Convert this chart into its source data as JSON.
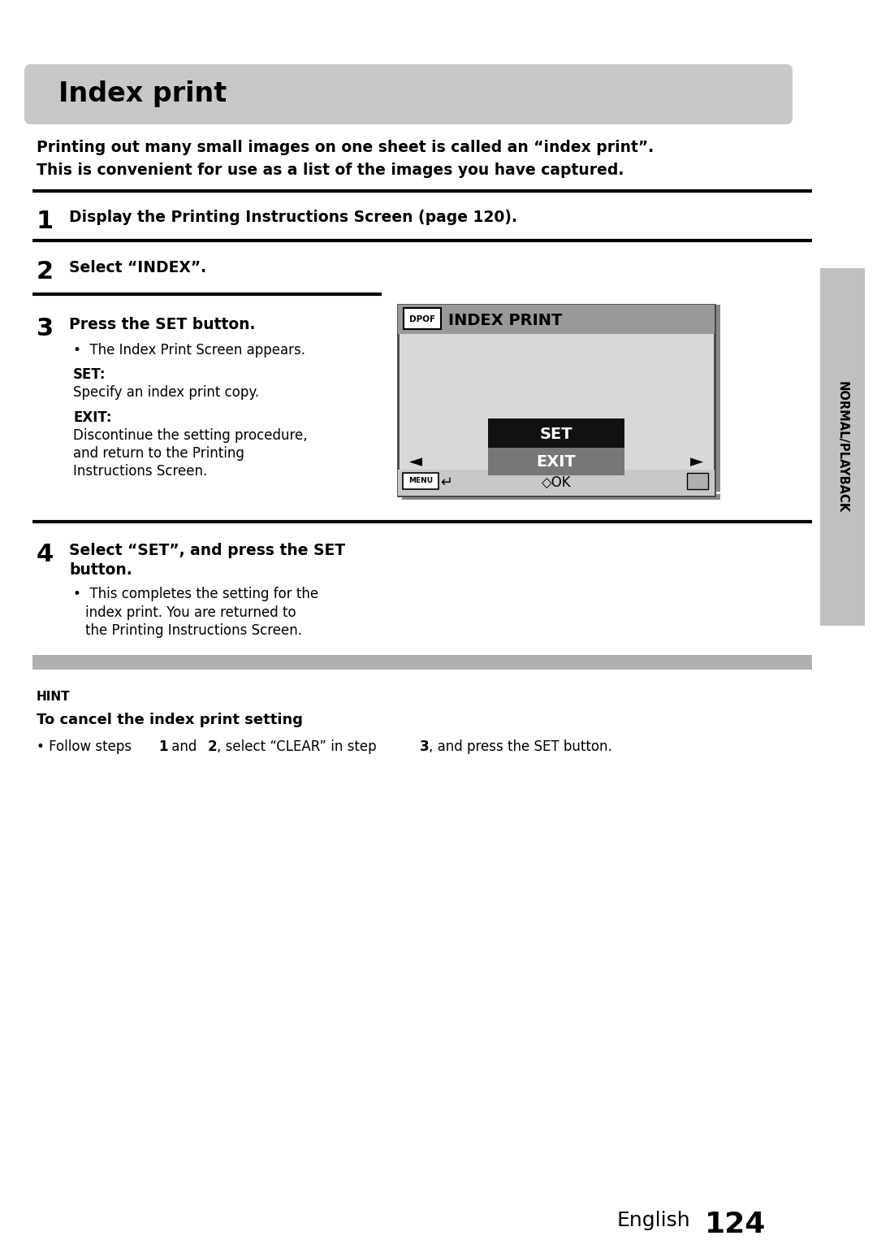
{
  "title": "Index print",
  "title_bg": "#c8c8c8",
  "intro_line1": "Printing out many small images on one sheet is called an “index print”.",
  "intro_line2": "This is convenient for use as a list of the images you have captured.",
  "step1_num": "1",
  "step1_text": "Display the Printing Instructions Screen (page 120).",
  "step2_num": "2",
  "step2_text": "Select “INDEX”.",
  "step3_num": "3",
  "step3_title": "Press the SET button.",
  "step3_bullet": "The Index Print Screen appears.",
  "step3_set_label": "SET:",
  "step3_set_text": "Specify an index print copy.",
  "step3_exit_label": "EXIT:",
  "step3_exit_text1": "Discontinue the setting procedure,",
  "step3_exit_text2": "and return to the Printing",
  "step3_exit_text3": "Instructions Screen.",
  "step4_num": "4",
  "step4_title1": "Select “SET”, and press the SET",
  "step4_title2": "button.",
  "step4_bullet1": "This completes the setting for the",
  "step4_bullet2": "index print. You are returned to",
  "step4_bullet3": "the Printing Instructions Screen.",
  "hint_label": "HINT",
  "hint_title": "To cancel the index print setting",
  "hint_text1": "• Follow steps ",
  "hint_bold1": "1",
  "hint_text2": " and ",
  "hint_bold2": "2",
  "hint_text3": ", select “CLEAR” in step ",
  "hint_bold3": "3",
  "hint_text4": ", and press the SET button.",
  "footer_text": "English",
  "footer_num": "124",
  "sidebar_text": "NORMAL/PLAYBACK",
  "sidebar_bg": "#c0c0c0",
  "screen_bg": "#d8d8d8",
  "screen_header_bg": "#999999",
  "screen_set_bg": "#111111",
  "screen_exit_bg": "#777777",
  "screen_border": "#444444",
  "hint_bar_bg": "#b0b0b0",
  "page_bg": "#ffffff"
}
